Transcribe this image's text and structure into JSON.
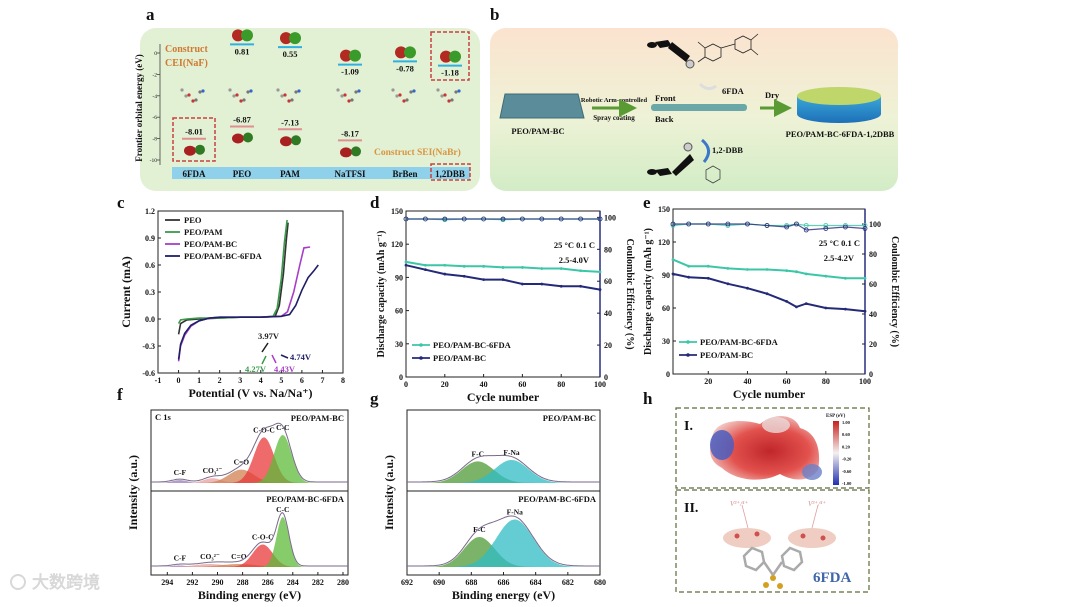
{
  "panel_labels": [
    "a",
    "b",
    "c",
    "d",
    "e",
    "f",
    "g",
    "h"
  ],
  "watermark": "大数跨境",
  "panel_a": {
    "cei_line1": "Construct",
    "cei_line2": "CEI(NaF)",
    "sei_label": "Construct SEI(NaBr)"
  },
  "panel_b": {
    "substrate": "PEO/PAM-BC",
    "arrow_top": "Robotic Arm-controlled",
    "arrow_bottom": "Spray coating",
    "front": "Front",
    "back": "Back",
    "reagent_front": "6FDA",
    "reagent_back": "1,2-DBB",
    "dry": "Dry",
    "product": "PEO/PAM-BC-6FDA-1,2DBB"
  },
  "panel_h": {
    "box1": "I.",
    "box2": "II.",
    "colorbar_title": "ESP (eV)",
    "colorbar_ticks": [
      "1.00",
      "0.60",
      "0.20",
      "-0.20",
      "-0.60",
      "-1.00"
    ],
    "site_label": "V³⁺/⁴⁺",
    "molecule": "6FDA"
  },
  "chart_data": [
    {
      "type": "levels",
      "title": "",
      "ylabel": "Frontier orbital energy (eV)",
      "ylim": [
        -11,
        1
      ],
      "yticks": [
        "0",
        "-2",
        "-4",
        "-6",
        "-8",
        "-10"
      ],
      "categories": [
        "6FDA",
        "PEO",
        "PAM",
        "NaTFSI",
        "BrBen",
        "1,2DBB"
      ],
      "lumo": [
        null,
        0.81,
        0.55,
        -1.09,
        -0.78,
        -1.18
      ],
      "lumo_labels": [
        "",
        "0.81",
        "0.55",
        "-1.09",
        "-0.78",
        "-1.18"
      ],
      "homo": [
        -8.01,
        -6.87,
        -7.13,
        -8.17,
        null,
        null
      ],
      "homo_labels": [
        "-8.01",
        "-6.87",
        "-7.13",
        "-8.17",
        "",
        ""
      ],
      "highlighted": [
        "6FDA HOMO",
        "1,2DBB LUMO"
      ]
    },
    {
      "type": "line",
      "xlabel": "Potential (V vs. Na/Na⁺)",
      "ylabel": "Current (mA)",
      "xlim": [
        -1,
        8
      ],
      "ylim": [
        -0.6,
        1.2
      ],
      "xticks": [
        "-1",
        "0",
        "1",
        "2",
        "3",
        "4",
        "5",
        "6",
        "7",
        "8"
      ],
      "yticks": [
        "-0.6",
        "-0.3",
        "0.0",
        "0.3",
        "0.6",
        "0.9",
        "1.2"
      ],
      "legend": "top-left",
      "series": [
        {
          "name": "PEO",
          "color": "#333333",
          "x": [
            0,
            0.1,
            0.4,
            1,
            2,
            3,
            4,
            4.7,
            4.9,
            5.1,
            5.25,
            5.33
          ],
          "y": [
            -0.17,
            -0.05,
            -0.01,
            0.0,
            0.01,
            0.02,
            0.02,
            0.03,
            0.15,
            0.5,
            0.9,
            1.07
          ]
        },
        {
          "name": "PEO/PAM",
          "color": "#3a9a4a",
          "x": [
            0,
            0.1,
            0.4,
            1,
            2,
            3,
            4,
            4.6,
            4.8,
            5.0,
            5.15,
            5.28
          ],
          "y": [
            -0.05,
            -0.01,
            0.0,
            0.01,
            0.01,
            0.02,
            0.02,
            0.03,
            0.12,
            0.45,
            0.85,
            1.1
          ]
        },
        {
          "name": "PEO/PAM-BC",
          "color": "#a83ec8",
          "x": [
            0,
            0.1,
            0.3,
            0.6,
            1,
            1.5,
            2,
            3,
            4,
            5,
            5.3,
            5.6,
            5.9,
            6.1,
            6.4
          ],
          "y": [
            -0.47,
            -0.3,
            -0.18,
            -0.08,
            -0.02,
            0.01,
            0.02,
            0.02,
            0.02,
            0.03,
            0.08,
            0.3,
            0.6,
            0.79,
            0.8
          ]
        },
        {
          "name": "PEO/PAM-BC-6FDA",
          "color": "#1f1f66",
          "x": [
            0,
            0.1,
            0.3,
            0.6,
            1,
            1.5,
            2,
            3,
            4,
            5,
            5.4,
            5.7,
            6.0,
            6.3,
            6.6,
            6.8
          ],
          "y": [
            -0.45,
            -0.28,
            -0.16,
            -0.07,
            -0.02,
            0.01,
            0.02,
            0.02,
            0.02,
            0.03,
            0.05,
            0.15,
            0.32,
            0.46,
            0.54,
            0.6
          ]
        }
      ],
      "annotations": [
        {
          "text": "3.97V",
          "x": 3.97,
          "color": "#1f1f1f"
        },
        {
          "text": "4.27V",
          "x": 4.27,
          "color": "#3a9a4a"
        },
        {
          "text": "4.43V",
          "x": 4.43,
          "color": "#a83ec8"
        },
        {
          "text": "4.74V",
          "x": 4.74,
          "color": "#1f1f66"
        }
      ]
    },
    {
      "type": "line",
      "xlabel": "Cycle number",
      "ylabel": "Discharge capacity (mAh g⁻¹)",
      "ylabel_right": "Coulombic Efficiency (%)",
      "xlim": [
        0,
        100
      ],
      "ylim": [
        0,
        150
      ],
      "ylim_right": [
        0,
        104
      ],
      "xticks": [
        "0",
        "20",
        "40",
        "60",
        "80",
        "100"
      ],
      "yticks": [
        "0",
        "30",
        "60",
        "90",
        "120",
        "150"
      ],
      "yticks_right": [
        "0",
        "20",
        "40",
        "60",
        "80",
        "100"
      ],
      "conditions": [
        "25 °C 0.1 C",
        "2.5-4.0V"
      ],
      "legend": "bottom-left",
      "x": [
        0,
        10,
        20,
        30,
        40,
        50,
        60,
        70,
        80,
        90,
        100
      ],
      "series": [
        {
          "name": "PEO/PAM-BC-6FDA",
          "color": "#3cc6a8",
          "capacity": [
            104,
            101,
            101,
            100,
            100,
            99,
            99,
            98,
            98,
            96,
            95
          ],
          "ce": [
            99,
            99,
            98.5,
            99,
            99,
            98.5,
            99,
            99,
            99,
            99,
            99
          ]
        },
        {
          "name": "PEO/PAM-BC",
          "color": "#252a78",
          "capacity": [
            101,
            97,
            93,
            91,
            88,
            88,
            84,
            84,
            82,
            82,
            79
          ],
          "ce": [
            99,
            99,
            99,
            99,
            99,
            99,
            99,
            99,
            99,
            99,
            99
          ]
        }
      ]
    },
    {
      "type": "line",
      "xlabel": "Cycle number",
      "ylabel": "Discharge capacity (mAh g⁻¹)",
      "ylabel_right": "Coulombic Efficiency (%)",
      "xlim": [
        2,
        100
      ],
      "ylim": [
        0,
        150
      ],
      "ylim_right": [
        0,
        110
      ],
      "xticks": [
        "20",
        "40",
        "60",
        "80",
        "100"
      ],
      "yticks": [
        "0",
        "30",
        "60",
        "90",
        "120",
        "150"
      ],
      "yticks_right": [
        "0",
        "20",
        "40",
        "60",
        "80",
        "100"
      ],
      "conditions": [
        "25 °C 0.1 C",
        "2.5-4.2V"
      ],
      "legend": "bottom-left",
      "x": [
        2,
        10,
        20,
        30,
        40,
        50,
        60,
        65,
        70,
        80,
        90,
        100
      ],
      "series": [
        {
          "name": "PEO/PAM-BC-6FDA",
          "color": "#3cc6a8",
          "capacity": [
            104,
            98,
            98,
            96,
            95,
            95,
            94,
            93,
            91,
            89,
            87,
            87
          ],
          "ce": [
            99,
            100,
            100,
            99,
            100,
            99,
            99,
            100,
            99,
            99,
            99,
            99
          ]
        },
        {
          "name": "PEO/PAM-BC",
          "color": "#252a78",
          "capacity": [
            91,
            88,
            87,
            82,
            78,
            73,
            66,
            61,
            64,
            60,
            59,
            57
          ],
          "ce": [
            100,
            100,
            100,
            100,
            100,
            99,
            98,
            100,
            96,
            97,
            98,
            97
          ]
        }
      ]
    },
    {
      "type": "area",
      "xlabel": "Binding energy (eV)",
      "ylabel": "Intensity (a.u.)",
      "xlim": [
        295.3,
        279.6
      ],
      "xticks": [
        "294",
        "292",
        "290",
        "288",
        "286",
        "284",
        "282",
        "280"
      ],
      "corner_label": "C 1s",
      "panels": [
        {
          "name": "PEO/PAM-BC",
          "peaks": [
            {
              "label": "C-F",
              "center": 293.0,
              "height": 0.06,
              "width": 0.6,
              "color": "#9a7ab8"
            },
            {
              "label": "CO₃²⁻",
              "center": 290.4,
              "height": 0.1,
              "width": 0.7,
              "color": "#e8a0a0"
            },
            {
              "label": "C=O",
              "center": 288.1,
              "height": 0.28,
              "width": 1.0,
              "color": "#d08050"
            },
            {
              "label": "C-O-C",
              "center": 286.3,
              "height": 0.95,
              "width": 0.8,
              "color": "#e8383a"
            },
            {
              "label": "C-C",
              "center": 284.8,
              "height": 1.0,
              "width": 0.7,
              "color": "#5dbb3a"
            }
          ]
        },
        {
          "name": "PEO/PAM-BC-6FDA",
          "peaks": [
            {
              "label": "C-F",
              "center": 293.0,
              "height": 0.03,
              "width": 0.6,
              "color": "#9a7ab8"
            },
            {
              "label": "CO₃²⁻",
              "center": 290.6,
              "height": 0.06,
              "width": 1.2,
              "color": "#e8a0a0"
            },
            {
              "label": "C=O",
              "center": 288.3,
              "height": 0.06,
              "width": 1.4,
              "color": "#d08050"
            },
            {
              "label": "C-O-C",
              "center": 286.4,
              "height": 0.45,
              "width": 0.8,
              "color": "#e8383a"
            },
            {
              "label": "C-C",
              "center": 284.8,
              "height": 1.0,
              "width": 0.5,
              "color": "#5dbb3a"
            }
          ]
        }
      ]
    },
    {
      "type": "area",
      "xlabel": "Binding energy (eV)",
      "ylabel": "Intensity (a.u.)",
      "xlim": [
        692,
        680
      ],
      "xticks": [
        "692",
        "690",
        "688",
        "686",
        "684",
        "682",
        "680"
      ],
      "panels": [
        {
          "name": "PEO/PAM-BC",
          "peaks": [
            {
              "label": "F-C",
              "center": 687.6,
              "height": 0.45,
              "width": 1.0,
              "color": "#4f9a35"
            },
            {
              "label": "F-Na",
              "center": 685.5,
              "height": 0.48,
              "width": 1.05,
              "color": "#2fbcc4"
            }
          ]
        },
        {
          "name": "PEO/PAM-BC-6FDA",
          "peaks": [
            {
              "label": "F-C",
              "center": 687.5,
              "height": 0.6,
              "width": 0.95,
              "color": "#4f9a35"
            },
            {
              "label": "F-Na",
              "center": 685.3,
              "height": 0.95,
              "width": 1.15,
              "color": "#2fbcc4"
            }
          ]
        }
      ]
    }
  ]
}
